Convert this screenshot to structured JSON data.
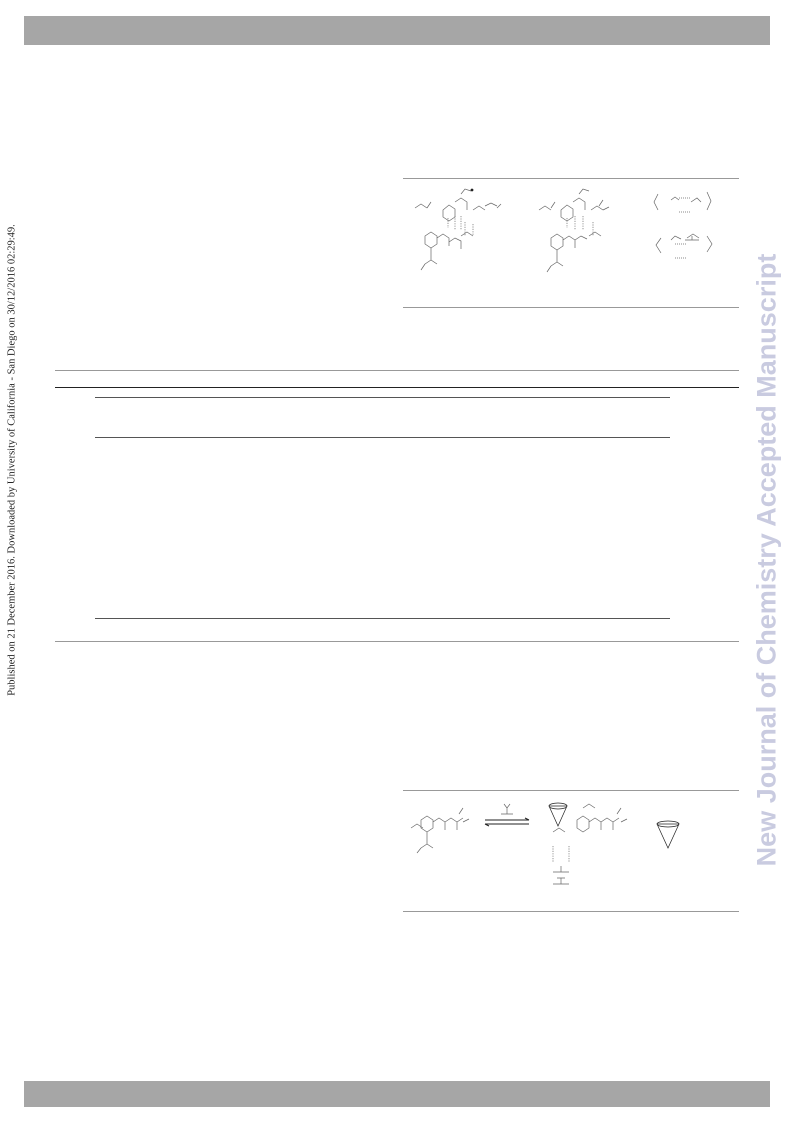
{
  "side_note": "Published on 21 December 2016. Downloaded by University of California - San Diego on 30/12/2016 02:29:49.",
  "watermark": "New Journal of Chemistry Accepted Manuscript"
}
